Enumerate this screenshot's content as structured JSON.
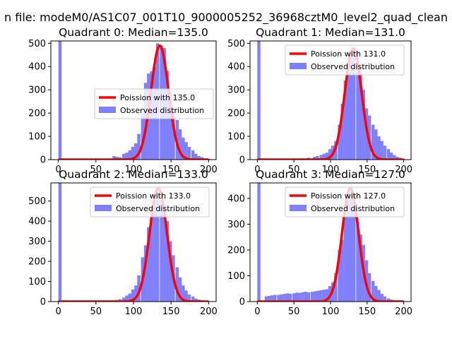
{
  "figure": {
    "suptitle": "n file: modeM0/AS1C07_001T10_9000005252_36968cztM0_level2_quad_clean"
  },
  "colors": {
    "fit_line": "#ff0000",
    "hist_fill": "#8080ff",
    "axes": "#000000"
  },
  "chart_data": [
    {
      "type": "bar",
      "title": "Quadrant 0: Median=135.0",
      "xlim": [
        -10,
        210
      ],
      "ylim": [
        0,
        510
      ],
      "xticks": [
        0,
        50,
        100,
        150,
        200
      ],
      "yticks": [
        0,
        100,
        200,
        300,
        400,
        500
      ],
      "legend_position": "center-right",
      "series": [
        {
          "name": "Poission with 135.0",
          "kind": "line",
          "mean": 135.0,
          "peak": 490
        },
        {
          "name": "Observed distribution",
          "kind": "histogram",
          "bin_width": 4.2,
          "bins": [
            [
              0,
              510
            ],
            [
              67,
              5
            ],
            [
              72,
              15
            ],
            [
              76,
              12
            ],
            [
              80,
              10
            ],
            [
              85,
              25
            ],
            [
              89,
              30
            ],
            [
              93,
              40
            ],
            [
              97,
              55
            ],
            [
              101,
              70
            ],
            [
              105,
              110
            ],
            [
              110,
              200
            ],
            [
              114,
              330
            ],
            [
              118,
              370
            ],
            [
              122,
              380
            ],
            [
              126,
              400
            ],
            [
              130,
              500
            ],
            [
              135,
              490
            ],
            [
              139,
              480
            ],
            [
              143,
              380
            ],
            [
              147,
              290
            ],
            [
              151,
              220
            ],
            [
              156,
              170
            ],
            [
              160,
              130
            ],
            [
              164,
              95
            ],
            [
              168,
              75
            ],
            [
              172,
              55
            ],
            [
              177,
              40
            ],
            [
              181,
              25
            ],
            [
              185,
              15
            ],
            [
              189,
              10
            ],
            [
              193,
              5
            ],
            [
              198,
              3
            ]
          ]
        }
      ]
    },
    {
      "type": "bar",
      "title": "Quadrant 1: Median=131.0",
      "xlim": [
        -10,
        210
      ],
      "ylim": [
        0,
        510
      ],
      "xticks": [
        0,
        50,
        100,
        150,
        200
      ],
      "yticks": [
        0,
        100,
        200,
        300,
        400,
        500
      ],
      "legend_position": "upper-right",
      "series": [
        {
          "name": "Poission with 131.0",
          "kind": "line",
          "mean": 131.0,
          "peak": 478
        },
        {
          "name": "Observed distribution",
          "kind": "histogram",
          "bin_width": 4.2,
          "bins": [
            [
              0,
              510
            ],
            [
              60,
              5
            ],
            [
              68,
              8
            ],
            [
              76,
              12
            ],
            [
              80,
              15
            ],
            [
              85,
              20
            ],
            [
              89,
              25
            ],
            [
              93,
              30
            ],
            [
              97,
              45
            ],
            [
              101,
              60
            ],
            [
              105,
              80
            ],
            [
              110,
              150
            ],
            [
              114,
              240
            ],
            [
              118,
              340
            ],
            [
              122,
              370
            ],
            [
              126,
              450
            ],
            [
              130,
              480
            ],
            [
              135,
              470
            ],
            [
              139,
              400
            ],
            [
              143,
              300
            ],
            [
              147,
              220
            ],
            [
              151,
              190
            ],
            [
              156,
              150
            ],
            [
              160,
              130
            ],
            [
              164,
              100
            ],
            [
              168,
              80
            ],
            [
              172,
              60
            ],
            [
              177,
              45
            ],
            [
              181,
              30
            ],
            [
              185,
              20
            ],
            [
              189,
              12
            ],
            [
              193,
              8
            ],
            [
              198,
              3
            ]
          ]
        }
      ]
    },
    {
      "type": "bar",
      "title": "Quadrant 2: Median=133.0",
      "xlim": [
        -10,
        210
      ],
      "ylim": [
        0,
        590
      ],
      "xticks": [
        0,
        50,
        100,
        150,
        200
      ],
      "yticks": [
        0,
        100,
        200,
        300,
        400,
        500
      ],
      "legend_position": "upper-right",
      "series": [
        {
          "name": "Poission with 133.0",
          "kind": "line",
          "mean": 133.0,
          "peak": 565
        },
        {
          "name": "Observed distribution",
          "kind": "histogram",
          "bin_width": 4.2,
          "bins": [
            [
              0,
              590
            ],
            [
              72,
              5
            ],
            [
              76,
              8
            ],
            [
              80,
              12
            ],
            [
              85,
              20
            ],
            [
              89,
              30
            ],
            [
              93,
              40
            ],
            [
              97,
              60
            ],
            [
              101,
              80
            ],
            [
              105,
              130
            ],
            [
              110,
              220
            ],
            [
              114,
              280
            ],
            [
              118,
              370
            ],
            [
              122,
              420
            ],
            [
              126,
              500
            ],
            [
              130,
              560
            ],
            [
              135,
              545
            ],
            [
              139,
              480
            ],
            [
              143,
              400
            ],
            [
              147,
              300
            ],
            [
              151,
              230
            ],
            [
              156,
              170
            ],
            [
              160,
              120
            ],
            [
              164,
              80
            ],
            [
              168,
              55
            ],
            [
              172,
              35
            ],
            [
              177,
              25
            ],
            [
              181,
              15
            ],
            [
              185,
              10
            ],
            [
              189,
              6
            ],
            [
              193,
              3
            ]
          ]
        }
      ]
    },
    {
      "type": "bar",
      "title": "Quadrant 3: Median=127.0",
      "xlim": [
        -10,
        210
      ],
      "ylim": [
        0,
        460
      ],
      "xticks": [
        0,
        50,
        100,
        150,
        200
      ],
      "yticks": [
        0,
        100,
        200,
        300,
        400
      ],
      "legend_position": "upper-right",
      "series": [
        {
          "name": "Poission with 127.0",
          "kind": "line",
          "mean": 127.0,
          "peak": 440
        },
        {
          "name": "Observed distribution",
          "kind": "histogram",
          "bin_width": 4.2,
          "bins": [
            [
              0,
              460
            ],
            [
              10,
              20
            ],
            [
              14,
              22
            ],
            [
              18,
              24
            ],
            [
              22,
              26
            ],
            [
              27,
              26
            ],
            [
              31,
              28
            ],
            [
              35,
              30
            ],
            [
              39,
              32
            ],
            [
              43,
              30
            ],
            [
              48,
              32
            ],
            [
              52,
              35
            ],
            [
              56,
              34
            ],
            [
              60,
              36
            ],
            [
              64,
              38
            ],
            [
              68,
              36
            ],
            [
              73,
              38
            ],
            [
              77,
              40
            ],
            [
              81,
              42
            ],
            [
              85,
              44
            ],
            [
              89,
              46
            ],
            [
              93,
              48
            ],
            [
              97,
              60
            ],
            [
              101,
              75
            ],
            [
              105,
              110
            ],
            [
              110,
              200
            ],
            [
              114,
              240
            ],
            [
              118,
              330
            ],
            [
              122,
              410
            ],
            [
              126,
              430
            ],
            [
              130,
              400
            ],
            [
              135,
              310
            ],
            [
              139,
              260
            ],
            [
              143,
              220
            ],
            [
              147,
              160
            ],
            [
              151,
              110
            ],
            [
              156,
              80
            ],
            [
              160,
              60
            ],
            [
              164,
              45
            ],
            [
              168,
              30
            ],
            [
              172,
              20
            ],
            [
              177,
              12
            ],
            [
              181,
              8
            ],
            [
              185,
              5
            ],
            [
              189,
              3
            ]
          ]
        }
      ]
    }
  ]
}
